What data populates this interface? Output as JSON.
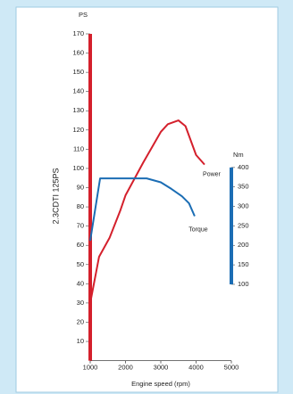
{
  "chart_data": {
    "type": "line",
    "y_axis_unit": "PS",
    "y2_axis_unit": "Nm",
    "ylabel": "2.3CDTI 125PS",
    "xlabel": "Engine speed (rpm)",
    "xlim": [
      1000,
      5000
    ],
    "xticks": [
      1000,
      2000,
      3000,
      4000,
      5000
    ],
    "ylim": [
      0,
      170
    ],
    "yticks": [
      10,
      20,
      30,
      40,
      50,
      60,
      70,
      80,
      90,
      100,
      110,
      120,
      130,
      140,
      150,
      160,
      170
    ],
    "y2lim": [
      -96,
      743
    ],
    "y2ticks": [
      100,
      150,
      200,
      250,
      300,
      350,
      400
    ],
    "series": [
      {
        "name": "Power",
        "color": "#d4202c",
        "axis": "y",
        "x": [
          1000,
          1250,
          1550,
          1850,
          2000,
          2500,
          3000,
          3200,
          3500,
          3700,
          4000,
          4240
        ],
        "values": [
          30,
          54,
          64,
          78,
          86,
          103,
          119,
          123,
          125,
          122,
          107,
          102
        ]
      },
      {
        "name": "Torque",
        "color": "#1b6db4",
        "axis": "y2",
        "x": [
          1000,
          1280,
          2000,
          2600,
          3000,
          3300,
          3600,
          3800,
          3960
        ],
        "values": [
          212,
          372,
          372,
          372,
          362,
          345,
          326,
          308,
          275
        ]
      }
    ]
  }
}
